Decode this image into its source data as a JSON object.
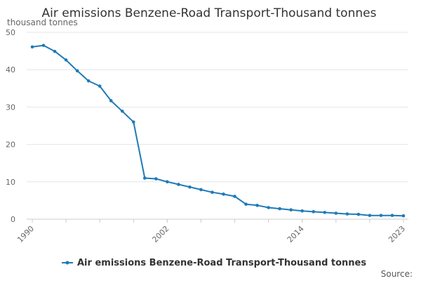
{
  "chart_data": {
    "type": "line",
    "title": "Air emissions Benzene-Road Transport-Thousand tonnes",
    "ylabel": "thousand tonnes",
    "xlabel": "",
    "ylim": [
      0,
      50
    ],
    "yticks": [
      0,
      10,
      20,
      30,
      40,
      50
    ],
    "xlim": [
      1990,
      2023
    ],
    "xticks": [
      "1990",
      "2002",
      "2014",
      "2023"
    ],
    "grid": "horizontal",
    "legend_position": "bottom",
    "x": [
      1990,
      1991,
      1992,
      1993,
      1994,
      1995,
      1996,
      1997,
      1998,
      1999,
      2000,
      2001,
      2002,
      2003,
      2004,
      2005,
      2006,
      2007,
      2008,
      2009,
      2010,
      2011,
      2012,
      2013,
      2014,
      2015,
      2016,
      2017,
      2018,
      2019,
      2020,
      2021,
      2022,
      2023
    ],
    "series": [
      {
        "name": "Air emissions Benzene-Road Transport-Thousand tonnes",
        "color": "#1f7ab8",
        "values": [
          46.1,
          46.5,
          44.9,
          42.6,
          39.7,
          37.0,
          35.6,
          31.7,
          28.9,
          26.0,
          11.0,
          10.8,
          10.0,
          9.3,
          8.6,
          7.9,
          7.2,
          6.7,
          6.1,
          4.0,
          3.7,
          3.1,
          2.8,
          2.5,
          2.2,
          2.0,
          1.8,
          1.6,
          1.4,
          1.3,
          1.0,
          1.0,
          1.0,
          0.9
        ]
      }
    ]
  },
  "footer": {
    "source_label": "Source:"
  }
}
